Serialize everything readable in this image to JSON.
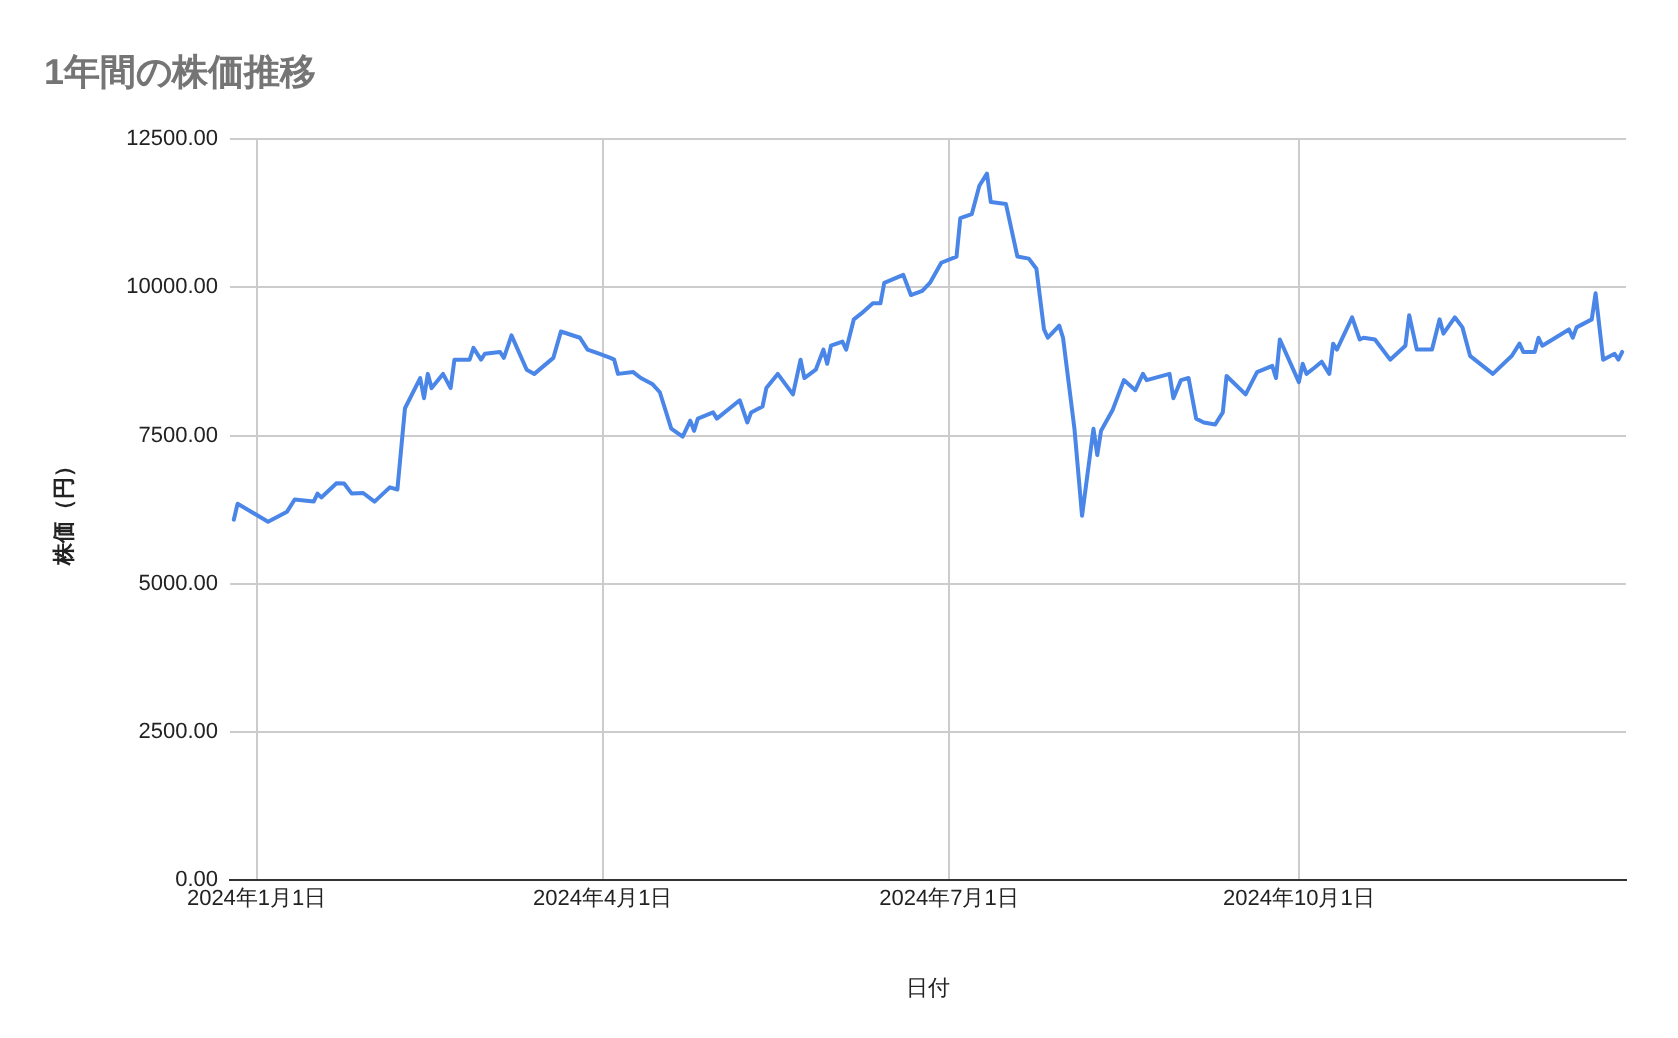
{
  "chart_data": {
    "type": "line",
    "title": "1年間の株価推移",
    "xlabel": "日付",
    "ylabel": "株価（円）",
    "x": [
      "2023-12-26",
      "2023-12-27",
      "2024-01-04",
      "2024-01-09",
      "2024-01-11",
      "2024-01-16",
      "2024-01-17",
      "2024-01-18",
      "2024-01-22",
      "2024-01-24",
      "2024-01-26",
      "2024-01-29",
      "2024-02-01",
      "2024-02-05",
      "2024-02-07",
      "2024-02-09",
      "2024-02-13",
      "2024-02-14",
      "2024-02-15",
      "2024-02-16",
      "2024-02-19",
      "2024-02-21",
      "2024-02-22",
      "2024-02-26",
      "2024-02-27",
      "2024-02-29",
      "2024-03-01",
      "2024-03-05",
      "2024-03-06",
      "2024-03-08",
      "2024-03-12",
      "2024-03-14",
      "2024-03-19",
      "2024-03-21",
      "2024-03-26",
      "2024-03-28",
      "2024-03-31",
      "2024-04-03",
      "2024-04-04",
      "2024-04-05",
      "2024-04-09",
      "2024-04-11",
      "2024-04-14",
      "2024-04-16",
      "2024-04-19",
      "2024-04-22",
      "2024-04-24",
      "2024-04-25",
      "2024-04-26",
      "2024-04-30",
      "2024-05-01",
      "2024-05-07",
      "2024-05-09",
      "2024-05-10",
      "2024-05-13",
      "2024-05-14",
      "2024-05-17",
      "2024-05-21",
      "2024-05-23",
      "2024-05-24",
      "2024-05-27",
      "2024-05-29",
      "2024-05-30",
      "2024-05-31",
      "2024-06-03",
      "2024-06-04",
      "2024-06-06",
      "2024-06-08",
      "2024-06-11",
      "2024-06-13",
      "2024-06-14",
      "2024-06-19",
      "2024-06-21",
      "2024-06-24",
      "2024-06-26",
      "2024-06-29",
      "2024-07-03",
      "2024-07-04",
      "2024-07-07",
      "2024-07-09",
      "2024-07-11",
      "2024-07-12",
      "2024-07-16",
      "2024-07-19",
      "2024-07-22",
      "2024-07-24",
      "2024-07-26",
      "2024-07-27",
      "2024-07-30",
      "2024-07-31",
      "2024-08-03",
      "2024-08-05",
      "2024-08-08",
      "2024-08-09",
      "2024-08-10",
      "2024-08-13",
      "2024-08-16",
      "2024-08-19",
      "2024-08-21",
      "2024-08-22",
      "2024-08-28",
      "2024-08-29",
      "2024-08-31",
      "2024-09-02",
      "2024-09-04",
      "2024-09-06",
      "2024-09-09",
      "2024-09-11",
      "2024-09-12",
      "2024-09-17",
      "2024-09-20",
      "2024-09-24",
      "2024-09-25",
      "2024-09-26",
      "2024-10-01",
      "2024-10-02",
      "2024-10-03",
      "2024-10-05",
      "2024-10-07",
      "2024-10-09",
      "2024-10-10",
      "2024-10-11",
      "2024-10-15",
      "2024-10-17",
      "2024-10-18",
      "2024-10-21",
      "2024-10-25",
      "2024-10-29",
      "2024-10-30",
      "2024-11-01",
      "2024-11-05",
      "2024-11-07",
      "2024-11-08",
      "2024-11-11",
      "2024-11-13",
      "2024-11-15",
      "2024-11-21",
      "2024-11-26",
      "2024-11-28",
      "2024-11-29",
      "2024-12-02",
      "2024-12-03",
      "2024-12-04",
      "2024-12-11",
      "2024-12-12",
      "2024-12-13",
      "2024-12-17",
      "2024-12-18",
      "2024-12-20",
      "2024-12-23",
      "2024-12-24",
      "2024-12-25"
    ],
    "series": [
      {
        "color": "#4a86e8",
        "values": [
          6080,
          6350,
          6045,
          6215,
          6420,
          6385,
          6520,
          6455,
          6695,
          6690,
          6520,
          6530,
          6385,
          6625,
          6590,
          7960,
          8470,
          8130,
          8540,
          8300,
          8540,
          8300,
          8780,
          8780,
          8980,
          8780,
          8880,
          8910,
          8810,
          9190,
          8610,
          8540,
          8810,
          9255,
          9150,
          8950,
          8880,
          8810,
          8780,
          8540,
          8570,
          8470,
          8370,
          8230,
          7615,
          7480,
          7750,
          7580,
          7785,
          7890,
          7785,
          8095,
          7720,
          7890,
          7990,
          8300,
          8540,
          8195,
          8780,
          8470,
          8610,
          8950,
          8710,
          9015,
          9085,
          8950,
          9460,
          9560,
          9730,
          9730,
          10075,
          10210,
          9870,
          9940,
          10075,
          10415,
          10520,
          11170,
          11235,
          11715,
          11920,
          11440,
          11405,
          10520,
          10485,
          10315,
          9290,
          9150,
          9355,
          9150,
          7615,
          6145,
          7615,
          7170,
          7580,
          7925,
          8435,
          8265,
          8540,
          8435,
          8540,
          8130,
          8435,
          8470,
          7785,
          7720,
          7685,
          7890,
          8505,
          8195,
          8570,
          8675,
          8470,
          9120,
          8400,
          8710,
          8540,
          8640,
          8745,
          8540,
          9050,
          8950,
          9495,
          9120,
          9150,
          9120,
          8780,
          9015,
          9530,
          8950,
          8950,
          9460,
          9220,
          9495,
          9325,
          8845,
          8540,
          8845,
          9050,
          8910,
          8910,
          9150,
          9015,
          9290,
          9150,
          9325,
          9460,
          9900,
          8780,
          8880,
          8780,
          8910
        ]
      }
    ],
    "xlim": [
      "2023-12-25",
      "2024-12-26"
    ],
    "xticks": [
      {
        "value": "2024-01-01",
        "label": "2024年1月1日"
      },
      {
        "value": "2024-04-01",
        "label": "2024年4月1日"
      },
      {
        "value": "2024-07-01",
        "label": "2024年7月1日"
      },
      {
        "value": "2024-10-01",
        "label": "2024年10月1日"
      }
    ],
    "ylim": [
      0,
      12500
    ],
    "yticks": [
      {
        "value": 0,
        "label": "0.00"
      },
      {
        "value": 2500,
        "label": "2500.00"
      },
      {
        "value": 5000,
        "label": "5000.00"
      },
      {
        "value": 7500,
        "label": "7500.00"
      },
      {
        "value": 10000,
        "label": "10000.00"
      },
      {
        "value": 12500,
        "label": "12500.00"
      }
    ],
    "grid": true,
    "marker": "none",
    "line_style": "solid"
  }
}
